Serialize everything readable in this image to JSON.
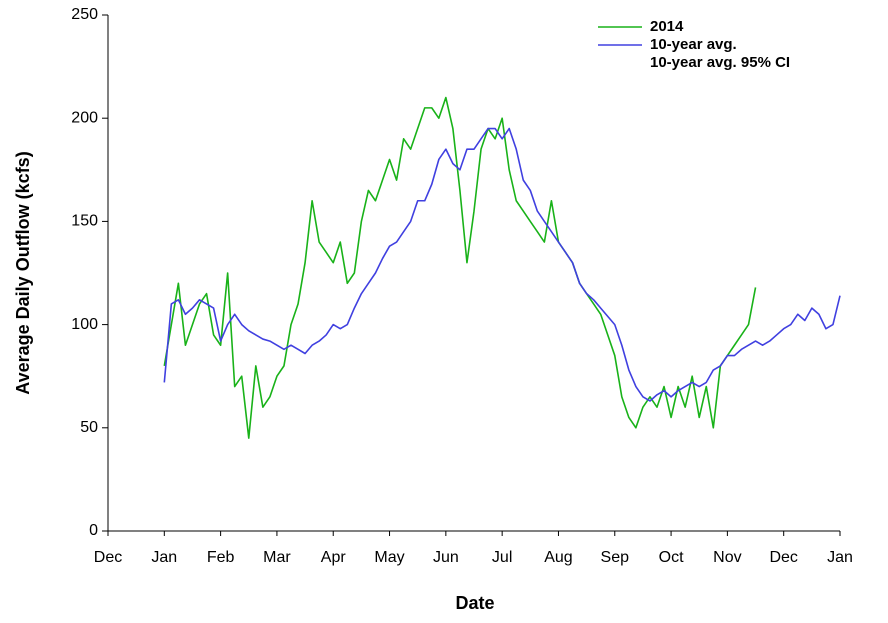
{
  "chart_data": {
    "type": "line",
    "xlabel": "Date",
    "ylabel": "Average Daily Outflow (kcfs)",
    "xlim": [
      0,
      13
    ],
    "ylim": [
      0,
      250
    ],
    "xticks": [
      {
        "value": 0,
        "label": "Dec"
      },
      {
        "value": 1,
        "label": "Jan"
      },
      {
        "value": 2,
        "label": "Feb"
      },
      {
        "value": 3,
        "label": "Mar"
      },
      {
        "value": 4,
        "label": "Apr"
      },
      {
        "value": 5,
        "label": "May"
      },
      {
        "value": 6,
        "label": "Jun"
      },
      {
        "value": 7,
        "label": "Jul"
      },
      {
        "value": 8,
        "label": "Aug"
      },
      {
        "value": 9,
        "label": "Sep"
      },
      {
        "value": 10,
        "label": "Oct"
      },
      {
        "value": 11,
        "label": "Nov"
      },
      {
        "value": 12,
        "label": "Dec"
      },
      {
        "value": 13,
        "label": "Jan"
      }
    ],
    "yticks": [
      0,
      50,
      100,
      150,
      200,
      250
    ],
    "legend": "upper right",
    "grid": false,
    "x": [
      1,
      1.125,
      1.25,
      1.375,
      1.5,
      1.625,
      1.75,
      1.875,
      2,
      2.125,
      2.25,
      2.375,
      2.5,
      2.625,
      2.75,
      2.875,
      3,
      3.125,
      3.25,
      3.375,
      3.5,
      3.625,
      3.75,
      3.875,
      4,
      4.125,
      4.25,
      4.375,
      4.5,
      4.625,
      4.75,
      4.875,
      5,
      5.125,
      5.25,
      5.375,
      5.5,
      5.625,
      5.75,
      5.875,
      6,
      6.125,
      6.25,
      6.375,
      6.5,
      6.625,
      6.75,
      6.875,
      7,
      7.125,
      7.25,
      7.375,
      7.5,
      7.625,
      7.75,
      7.875,
      8,
      8.125,
      8.25,
      8.375,
      8.5,
      8.625,
      8.75,
      8.875,
      9,
      9.125,
      9.25,
      9.375,
      9.5,
      9.625,
      9.75,
      9.875,
      10,
      10.125,
      10.25,
      10.375,
      10.5,
      10.625,
      10.75,
      10.875,
      11,
      11.125,
      11.25,
      11.375,
      11.5,
      11.625,
      11.75,
      11.875,
      12,
      12.125,
      12.25,
      12.375,
      12.5,
      12.625,
      12.75,
      12.875,
      13
    ],
    "series": [
      {
        "name": "2014",
        "color": "#19b219",
        "values": [
          80,
          100,
          120,
          90,
          100,
          110,
          115,
          95,
          90,
          125,
          70,
          75,
          45,
          80,
          60,
          65,
          75,
          80,
          100,
          110,
          130,
          160,
          140,
          135,
          130,
          140,
          120,
          125,
          150,
          165,
          160,
          170,
          180,
          170,
          190,
          185,
          195,
          205,
          205,
          200,
          210,
          195,
          165,
          130,
          155,
          185,
          195,
          190,
          200,
          175,
          160,
          155,
          150,
          145,
          140,
          160,
          140,
          135,
          130,
          120,
          115,
          110,
          105,
          95,
          85,
          65,
          55,
          50,
          60,
          65,
          60,
          70,
          55,
          70,
          60,
          75,
          55,
          70,
          50,
          80,
          85,
          90,
          95,
          100,
          118,
          null,
          null,
          null,
          null,
          null,
          null,
          null,
          null,
          null,
          null,
          null,
          null
        ]
      },
      {
        "name": "10-year avg.",
        "color": "#4040e0",
        "values": [
          72,
          110,
          112,
          105,
          108,
          112,
          110,
          108,
          92,
          100,
          105,
          100,
          97,
          95,
          93,
          92,
          90,
          88,
          90,
          88,
          86,
          90,
          92,
          95,
          100,
          98,
          100,
          108,
          115,
          120,
          125,
          132,
          138,
          140,
          145,
          150,
          160,
          160,
          168,
          180,
          185,
          178,
          175,
          185,
          185,
          190,
          195,
          195,
          190,
          195,
          185,
          170,
          165,
          155,
          150,
          145,
          140,
          135,
          130,
          120,
          115,
          112,
          108,
          104,
          100,
          90,
          78,
          70,
          65,
          63,
          66,
          68,
          65,
          68,
          70,
          72,
          70,
          72,
          78,
          80,
          85,
          85,
          88,
          90,
          92,
          90,
          92,
          95,
          98,
          100,
          105,
          102,
          108,
          105,
          98,
          100,
          114
        ]
      },
      {
        "name": "10-year avg. 95% CI",
        "color": "#c8c8c8",
        "values": [
          null,
          null,
          null,
          null,
          null,
          null,
          null,
          null,
          null,
          null,
          null,
          null,
          null,
          null,
          null,
          null,
          null,
          null,
          null,
          null,
          null,
          null,
          null,
          null,
          null,
          null,
          null,
          null,
          null,
          null,
          null,
          null,
          null,
          null,
          null,
          null,
          null,
          null,
          null,
          null,
          null,
          null,
          null,
          null,
          null,
          null,
          null,
          null,
          null,
          null,
          null,
          null,
          null,
          null,
          null,
          null,
          null,
          null,
          null,
          null,
          null,
          null,
          null,
          null,
          null,
          null,
          null,
          null,
          null,
          null,
          null,
          null,
          null,
          null,
          null,
          null,
          null,
          null,
          null,
          null,
          null,
          null,
          null,
          null,
          null,
          null,
          null,
          null,
          null,
          null,
          null,
          null,
          null,
          null,
          null,
          null,
          null
        ]
      }
    ]
  }
}
